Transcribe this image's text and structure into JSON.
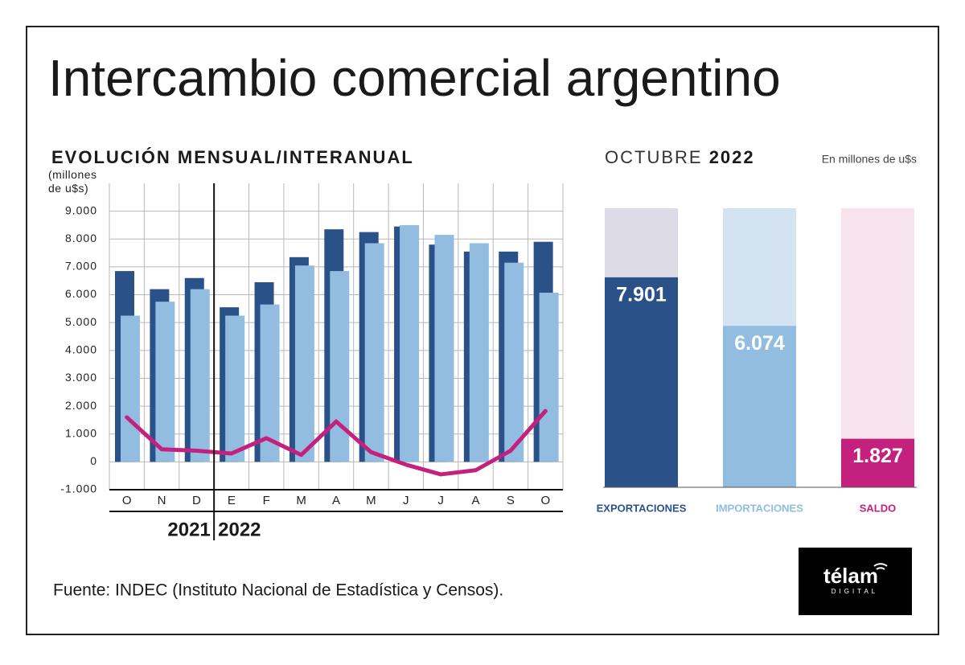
{
  "title": "Intercambio comercial argentino",
  "source": "Fuente: INDEC (Instituto Nacional de Estadística y Censos).",
  "logo": {
    "name": "télam",
    "sub": "DIGITAL"
  },
  "chart_data": [
    {
      "type": "combo",
      "title": "EVOLUCIÓN MENSUAL/INTERANUAL",
      "ylabel": "(millones de u$s)",
      "categories": [
        "O",
        "N",
        "D",
        "E",
        "F",
        "M",
        "A",
        "M",
        "J",
        "J",
        "A",
        "S",
        "O"
      ],
      "years": [
        {
          "label": "2021",
          "start": 0
        },
        {
          "label": "2022",
          "start": 3
        }
      ],
      "series": [
        {
          "kind": "bar",
          "color": "#2b5288",
          "values": [
            6850,
            6200,
            6600,
            5550,
            6450,
            7350,
            8350,
            8250,
            8450,
            7800,
            7550,
            7550,
            7901
          ]
        },
        {
          "kind": "bar",
          "color": "#92bde0",
          "values": [
            5250,
            5750,
            6200,
            5250,
            5650,
            7050,
            6850,
            7850,
            8500,
            8150,
            7850,
            7150,
            6074
          ]
        },
        {
          "kind": "line",
          "color": "#c4217f",
          "values": [
            1600,
            450,
            400,
            300,
            850,
            250,
            1450,
            350,
            -100,
            -450,
            -300,
            400,
            1827
          ]
        }
      ],
      "ylim": [
        -1000,
        10000
      ],
      "yticks": [
        {
          "value": -1000,
          "label": "-1.000"
        },
        0,
        {
          "value": 1000,
          "label": "1.000"
        },
        {
          "value": 2000,
          "label": "2.000"
        },
        {
          "value": 3000,
          "label": "3.000"
        },
        {
          "value": 4000,
          "label": "4.000"
        },
        {
          "value": 5000,
          "label": "5.000"
        },
        {
          "value": 6000,
          "label": "6.000"
        },
        {
          "value": 7000,
          "label": "7.000"
        },
        {
          "value": 8000,
          "label": "8.000"
        },
        {
          "value": 9000,
          "label": "9.000"
        }
      ],
      "grid": true
    },
    {
      "type": "bar",
      "title": "OCTUBRE",
      "title_bold": "2022",
      "note": "En millones de u$s",
      "categories": [
        "EXPORTACIONES",
        "IMPORTACIONES",
        "SALDO"
      ],
      "values": [
        7901,
        6074,
        1827
      ],
      "value_labels": [
        "7.901",
        "6.074",
        "1.827"
      ],
      "colors": [
        "#2b5288",
        "#92bde0",
        "#c4217f"
      ],
      "track_colors": [
        "#dcdbe6",
        "#d3e3f1",
        "#f6e3ec"
      ],
      "ylim": [
        0,
        10500
      ]
    }
  ]
}
